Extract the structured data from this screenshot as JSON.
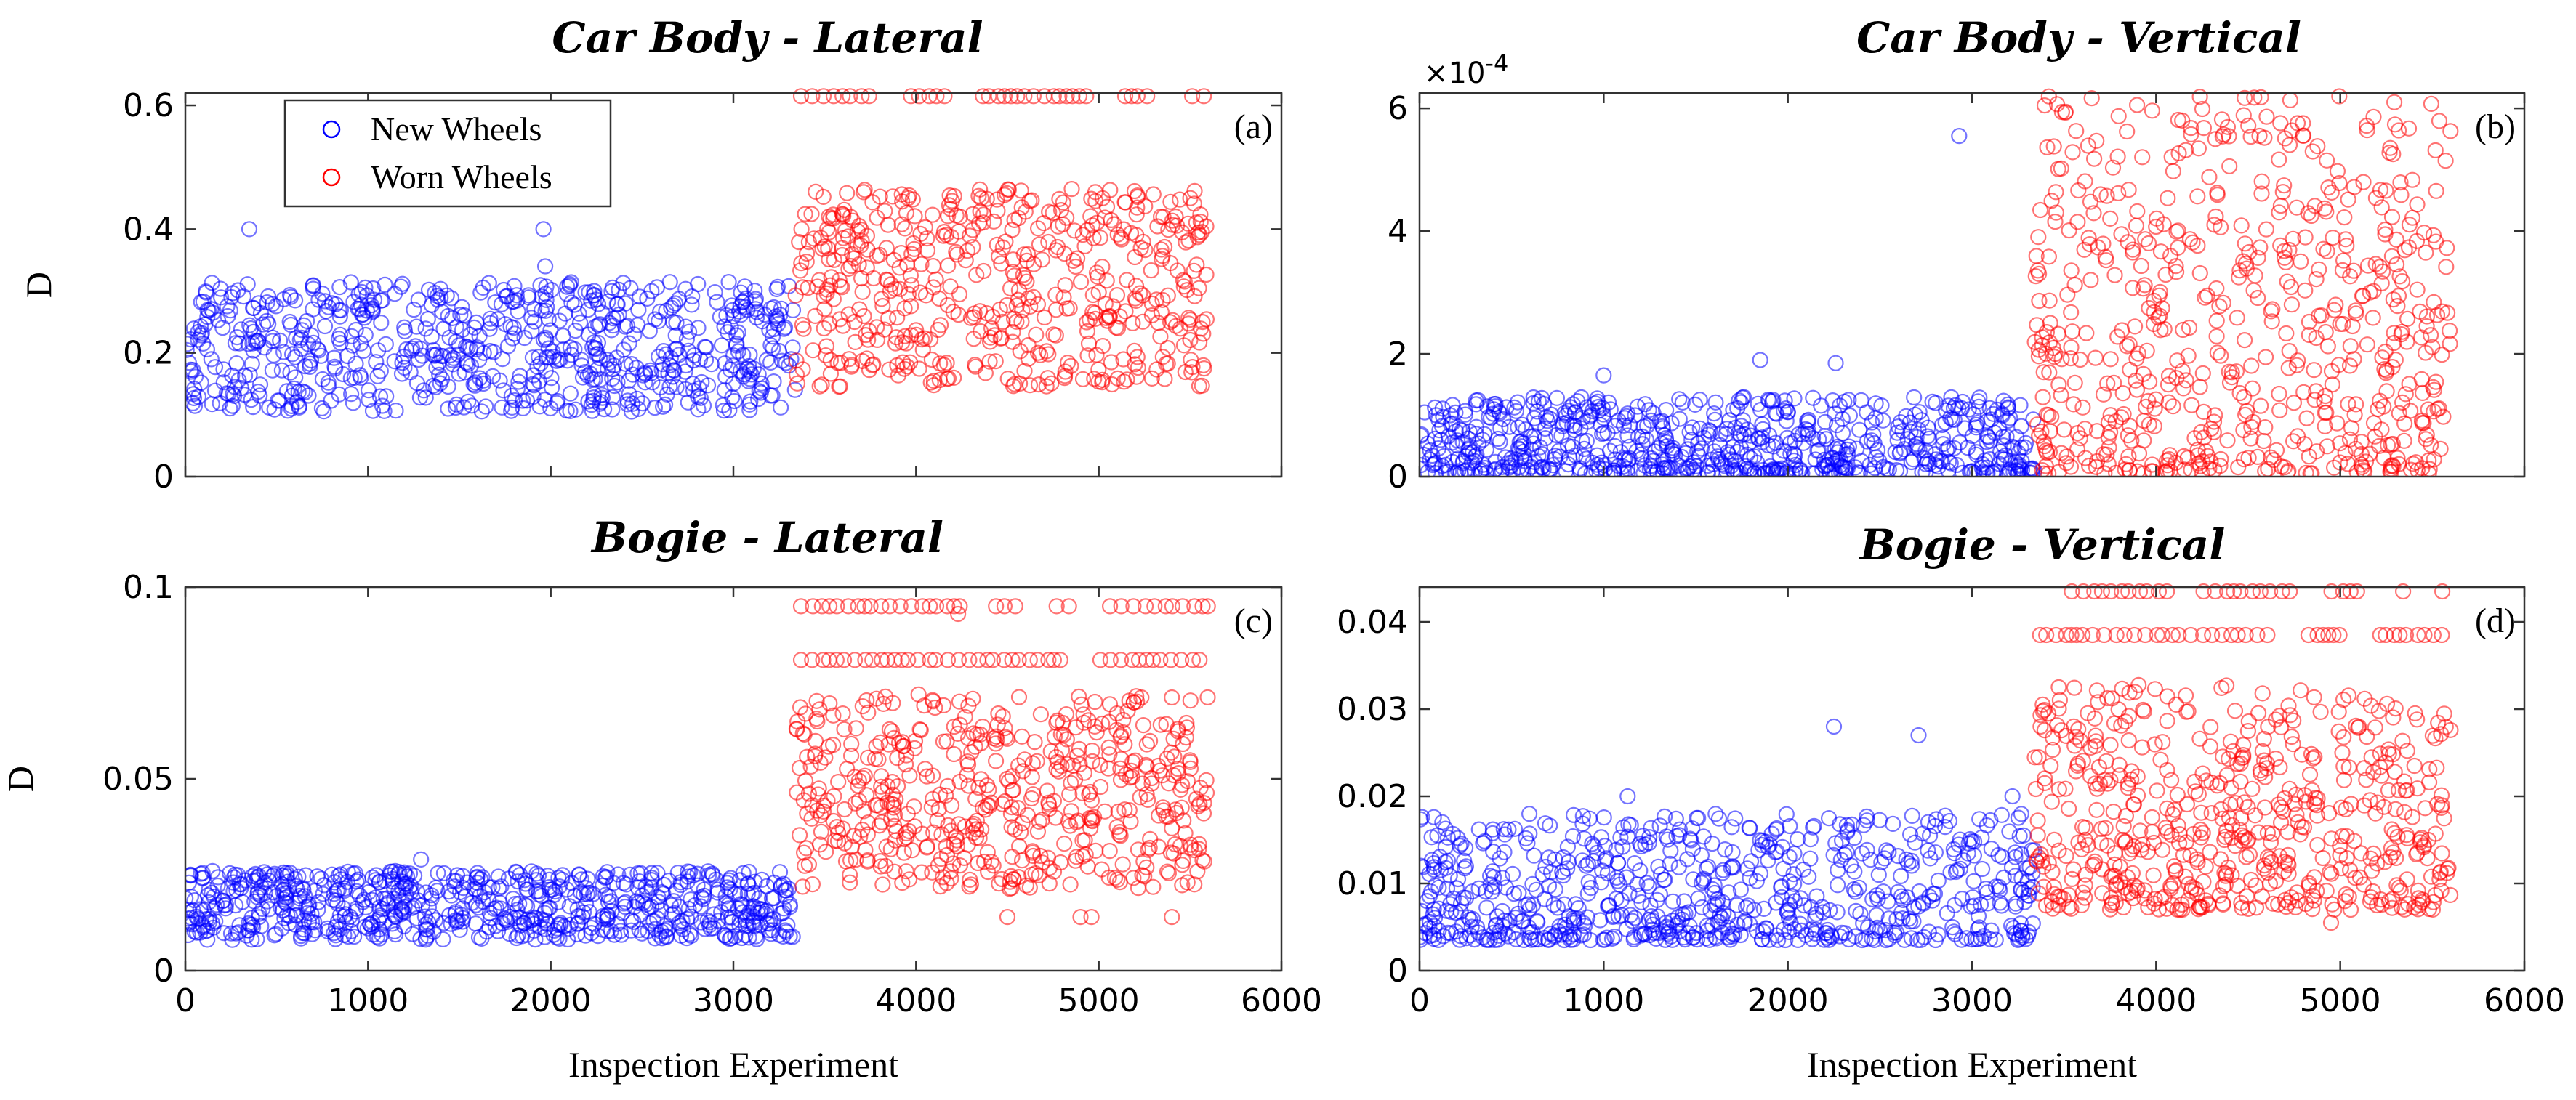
{
  "chart_data": [
    {
      "id": "a",
      "type": "scatter",
      "title": "Car Body - Lateral",
      "panel_label": "(a)",
      "xlabel": "",
      "ylabel": "D",
      "xlim": [
        0,
        6000
      ],
      "ylim": [
        0,
        0.62
      ],
      "xticks": [],
      "yticks": [
        0,
        0.2,
        0.4,
        0.6
      ],
      "ytick_labels": [
        "0",
        "0.2",
        "0.4",
        "0.6"
      ],
      "exponent_label": "",
      "legend": {
        "position": "top-left",
        "entries": [
          "New Wheels",
          "Worn Wheels"
        ]
      },
      "series": [
        {
          "name": "New Wheels",
          "color": "#0000ff",
          "x_range": [
            0,
            3340
          ],
          "n": 700,
          "y_low": 0.105,
          "y_high": 0.315,
          "outliers": [
            [
              350,
              0.4
            ],
            [
              1960,
              0.4
            ],
            [
              1970,
              0.34
            ]
          ]
        },
        {
          "name": "Worn Wheels",
          "color": "#ff0000",
          "x_range": [
            3340,
            5600
          ],
          "n": 520,
          "y_low": 0.145,
          "y_high": 0.465,
          "band_y": 0.615
        }
      ]
    },
    {
      "id": "b",
      "type": "scatter",
      "title": "Car Body - Vertical",
      "panel_label": "(b)",
      "xlabel": "",
      "ylabel": "",
      "xlim": [
        0,
        6000
      ],
      "ylim": [
        0,
        0.000625
      ],
      "xticks": [],
      "yticks": [
        0,
        0.0002,
        0.0004,
        0.0006
      ],
      "ytick_labels": [
        "0",
        "2",
        "4",
        "6"
      ],
      "exponent_label": "×10",
      "exponent_power": "-4",
      "series": [
        {
          "name": "New Wheels",
          "color": "#0000ff",
          "x_range": [
            0,
            3340
          ],
          "n": 700,
          "y_low": 5e-06,
          "y_high": 0.00013,
          "outliers": [
            [
              2930,
              0.000555
            ],
            [
              1850,
              0.00019
            ],
            [
              2260,
              0.000185
            ],
            [
              1000,
              0.000165
            ]
          ]
        },
        {
          "name": "Worn Wheels",
          "color": "#ff0000",
          "x_range": [
            3340,
            5600
          ],
          "n": 620,
          "y_low": 5e-06,
          "y_high": 0.00062
        }
      ]
    },
    {
      "id": "c",
      "type": "scatter",
      "title": "Bogie - Lateral",
      "panel_label": "(c)",
      "xlabel": "Inspection Experiment",
      "ylabel": "D",
      "xlim": [
        0,
        6000
      ],
      "ylim": [
        0,
        0.1
      ],
      "xticks": [
        0,
        1000,
        2000,
        3000,
        4000,
        5000,
        6000
      ],
      "xtick_labels": [
        "0",
        "1000",
        "2000",
        "3000",
        "4000",
        "5000",
        "6000"
      ],
      "yticks": [
        0,
        0.05,
        0.1
      ],
      "ytick_labels": [
        "0",
        "0.05",
        "0.1"
      ],
      "exponent_label": "",
      "series": [
        {
          "name": "New Wheels",
          "color": "#0000ff",
          "x_range": [
            0,
            3340
          ],
          "n": 700,
          "y_low": 0.008,
          "y_high": 0.026,
          "outliers": [
            [
              1290,
              0.029
            ]
          ]
        },
        {
          "name": "Worn Wheels",
          "color": "#ff0000",
          "x_range": [
            3340,
            5600
          ],
          "n": 520,
          "y_low": 0.021,
          "y_high": 0.072,
          "band_y": 0.095,
          "band2_y": 0.081,
          "outliers": [
            [
              4500,
              0.014
            ],
            [
              4900,
              0.014
            ],
            [
              4960,
              0.014
            ],
            [
              5400,
              0.014
            ],
            [
              4230,
              0.093
            ]
          ]
        }
      ]
    },
    {
      "id": "d",
      "type": "scatter",
      "title": "Bogie - Vertical",
      "panel_label": "(d)",
      "xlabel": "Inspection Experiment",
      "ylabel": "",
      "xlim": [
        0,
        6000
      ],
      "ylim": [
        0,
        0.044
      ],
      "xticks": [
        0,
        1000,
        2000,
        3000,
        4000,
        5000,
        6000
      ],
      "xtick_labels": [
        "0",
        "1000",
        "2000",
        "3000",
        "4000",
        "5000",
        "6000"
      ],
      "yticks": [
        0,
        0.01,
        0.02,
        0.03,
        0.04
      ],
      "ytick_labels": [
        "0",
        "0.01",
        "0.02",
        "0.03",
        "0.04"
      ],
      "exponent_label": "",
      "series": [
        {
          "name": "New Wheels",
          "color": "#0000ff",
          "x_range": [
            0,
            3340
          ],
          "n": 700,
          "y_low": 0.0035,
          "y_high": 0.018,
          "outliers": [
            [
              2250,
              0.028
            ],
            [
              2710,
              0.027
            ],
            [
              1130,
              0.02
            ],
            [
              3220,
              0.02
            ]
          ]
        },
        {
          "name": "Worn Wheels",
          "color": "#ff0000",
          "x_range": [
            3340,
            5600
          ],
          "n": 560,
          "y_low": 0.007,
          "y_high": 0.033,
          "band_y": 0.0435,
          "band2_y": 0.0385,
          "outliers": [
            [
              4950,
              0.0055
            ]
          ]
        }
      ]
    }
  ]
}
